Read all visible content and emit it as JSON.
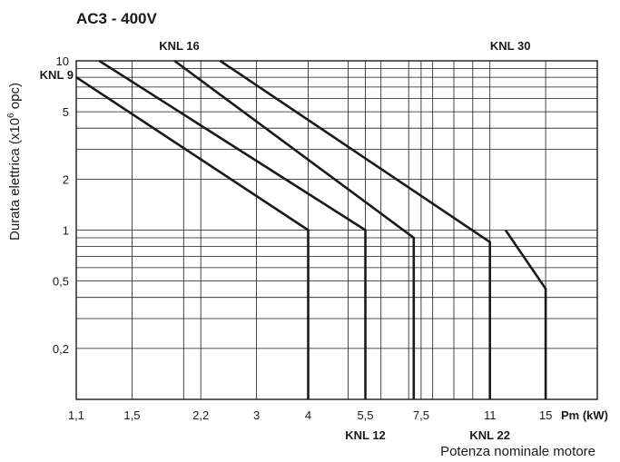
{
  "chart_data": {
    "type": "line",
    "title": "AC3 - 400V",
    "xlabel": "Potenza nominale motore",
    "xunit": "Pm (kW)",
    "ylabel_main": "Durata elettrica (x10",
    "ylabel_sup": "6",
    "ylabel_end": " opc)",
    "xscale": "log",
    "yscale": "log",
    "xlim": [
      1.1,
      20
    ],
    "ylim": [
      0.1,
      10
    ],
    "x_ticks": [
      {
        "v": 1.1,
        "label": "1,1"
      },
      {
        "v": 1.5,
        "label": "1,5"
      },
      {
        "v": 2.2,
        "label": "2,2"
      },
      {
        "v": 3,
        "label": "3"
      },
      {
        "v": 4,
        "label": "4"
      },
      {
        "v": 5.5,
        "label": "5,5"
      },
      {
        "v": 7.5,
        "label": "7,5"
      },
      {
        "v": 11,
        "label": "11"
      },
      {
        "v": 15,
        "label": "15"
      }
    ],
    "y_ticks": [
      {
        "v": 10,
        "label": "10"
      },
      {
        "v": 5,
        "label": "5"
      },
      {
        "v": 2,
        "label": "2"
      },
      {
        "v": 1,
        "label": "1"
      },
      {
        "v": 0.5,
        "label": "0,5"
      },
      {
        "v": 0.2,
        "label": "0,2"
      }
    ],
    "x_grid": [
      1.1,
      1.5,
      2,
      2.2,
      3,
      4,
      5,
      5.5,
      6,
      7,
      7.5,
      8,
      9,
      10,
      11,
      15
    ],
    "y_grid": [
      0.1,
      0.2,
      0.3,
      0.4,
      0.5,
      0.6,
      0.7,
      0.8,
      0.9,
      1,
      2,
      3,
      4,
      5,
      6,
      7,
      8,
      9,
      10
    ],
    "grid": true,
    "series": [
      {
        "name": "KNL 9",
        "points": [
          [
            1.1,
            8
          ],
          [
            4,
            1
          ],
          [
            4,
            0.1
          ]
        ]
      },
      {
        "name": "KNL 12",
        "points": [
          [
            1.25,
            10
          ],
          [
            5.5,
            1
          ],
          [
            5.5,
            0.1
          ]
        ]
      },
      {
        "name": "KNL 16",
        "points": [
          [
            1.9,
            10
          ],
          [
            7.2,
            0.9
          ],
          [
            7.2,
            0.1
          ]
        ]
      },
      {
        "name": "KNL 22",
        "points": [
          [
            2.45,
            10
          ],
          [
            11,
            0.85
          ],
          [
            11,
            0.1
          ]
        ]
      },
      {
        "name": "KNL 30",
        "points": [
          [
            12,
            1
          ],
          [
            15,
            0.45
          ],
          [
            15,
            0.1
          ]
        ]
      }
    ],
    "series_labels": [
      {
        "name": "KNL 9",
        "placement": "left-of-curve-top"
      },
      {
        "name": "KNL 16",
        "placement": "above-plot"
      },
      {
        "name": "KNL 30",
        "placement": "above-plot"
      },
      {
        "name": "KNL 12",
        "placement": "below-x-axis"
      },
      {
        "name": "KNL 22",
        "placement": "below-x-axis"
      }
    ]
  }
}
